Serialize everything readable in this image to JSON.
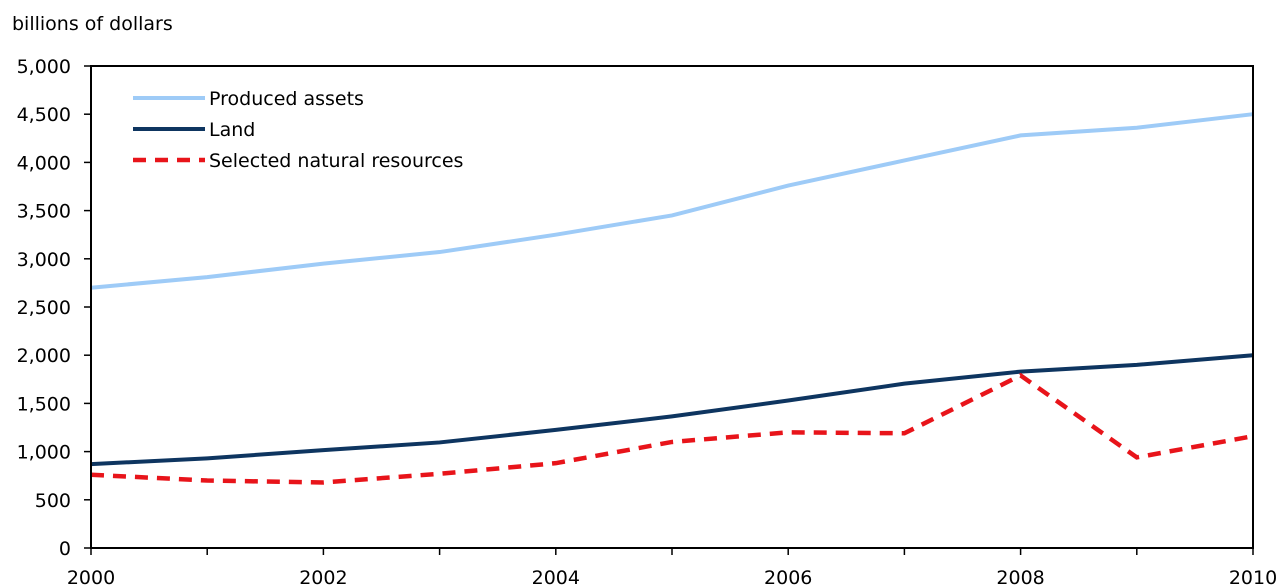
{
  "chart_data": {
    "type": "line",
    "title": "",
    "xlabel": "",
    "ylabel": "billions of dollars",
    "x": [
      2000,
      2001,
      2002,
      2003,
      2004,
      2005,
      2006,
      2007,
      2008,
      2009,
      2010
    ],
    "x_ticks": [
      "2000",
      "2002",
      "2004",
      "2006",
      "2008",
      "2010"
    ],
    "y_ticks": [
      "0",
      "500",
      "1,000",
      "1,500",
      "2,000",
      "2,500",
      "3,000",
      "3,500",
      "4,000",
      "4,500",
      "5,000"
    ],
    "ylim": [
      0,
      5000
    ],
    "xlim": [
      2000,
      2010
    ],
    "grid": false,
    "legend_position": "top-left",
    "series": [
      {
        "name": "Produced assets",
        "color": "#9ecbf7",
        "style": "solid",
        "values": [
          2700,
          2810,
          2950,
          3070,
          3250,
          3450,
          3760,
          4020,
          4280,
          4360,
          4500
        ]
      },
      {
        "name": "Land",
        "color": "#0e3560",
        "style": "solid",
        "values": [
          870,
          930,
          1015,
          1095,
          1225,
          1365,
          1530,
          1705,
          1830,
          1900,
          2000
        ]
      },
      {
        "name": "Selected natural resources",
        "color": "#e8141a",
        "style": "dashed",
        "values": [
          760,
          700,
          680,
          770,
          880,
          1100,
          1200,
          1190,
          1790,
          940,
          1160
        ]
      }
    ]
  }
}
